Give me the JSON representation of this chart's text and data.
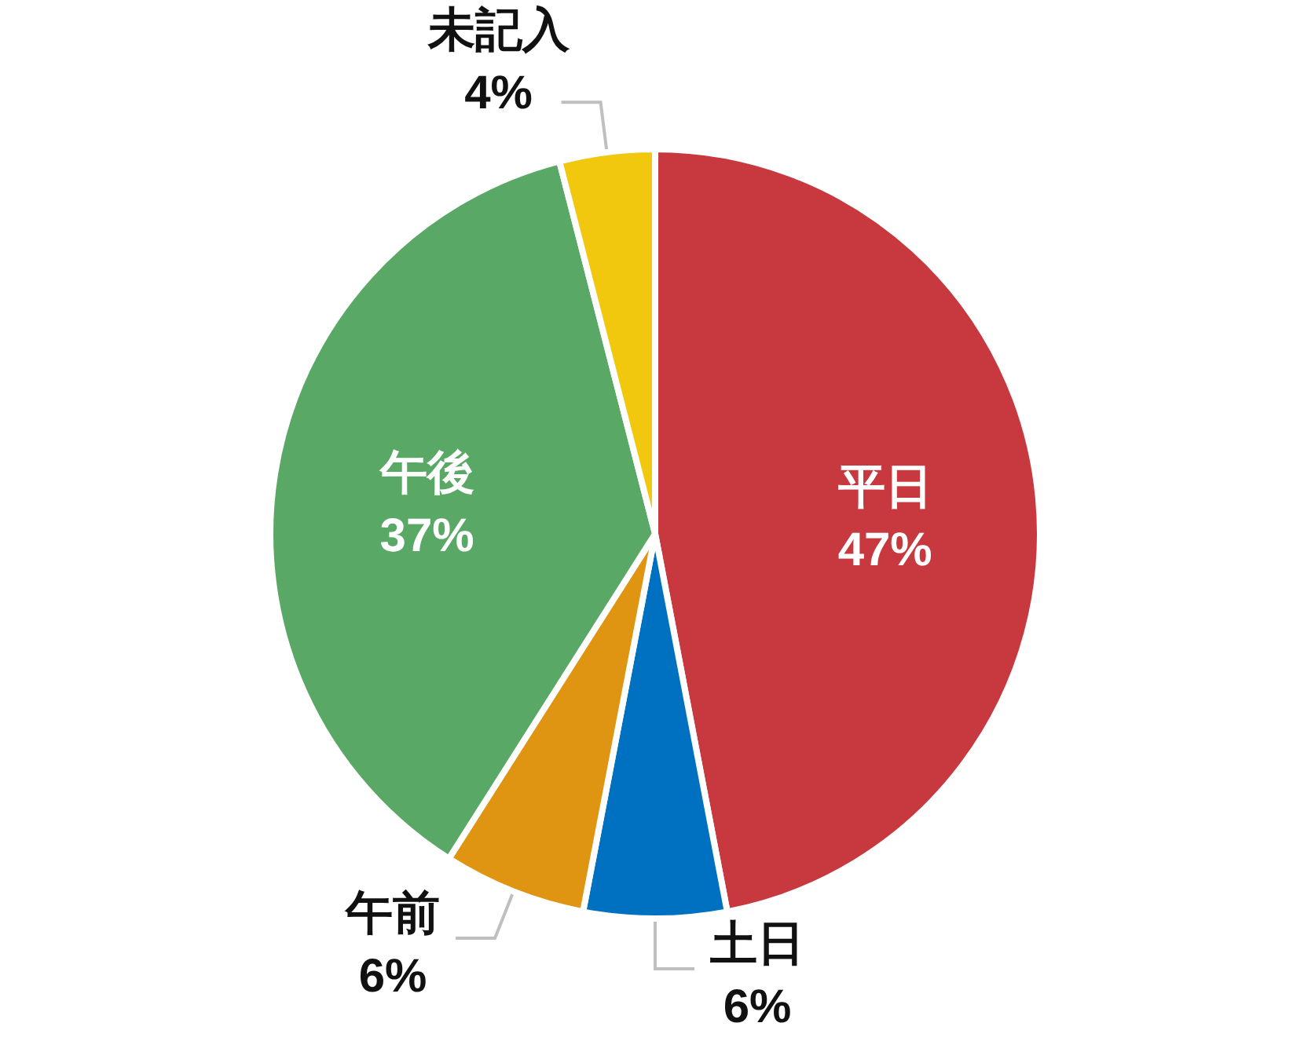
{
  "chart_data": {
    "type": "pie",
    "categories": [
      "平日",
      "土日",
      "午前",
      "午後",
      "未記入"
    ],
    "values": [
      47,
      6,
      6,
      37,
      4
    ],
    "value_labels": [
      "47%",
      "6%",
      "6%",
      "37%",
      "4%"
    ],
    "colors": [
      "#c8393f",
      "#0070c0",
      "#e09512",
      "#5aa865",
      "#f2c80f"
    ]
  }
}
